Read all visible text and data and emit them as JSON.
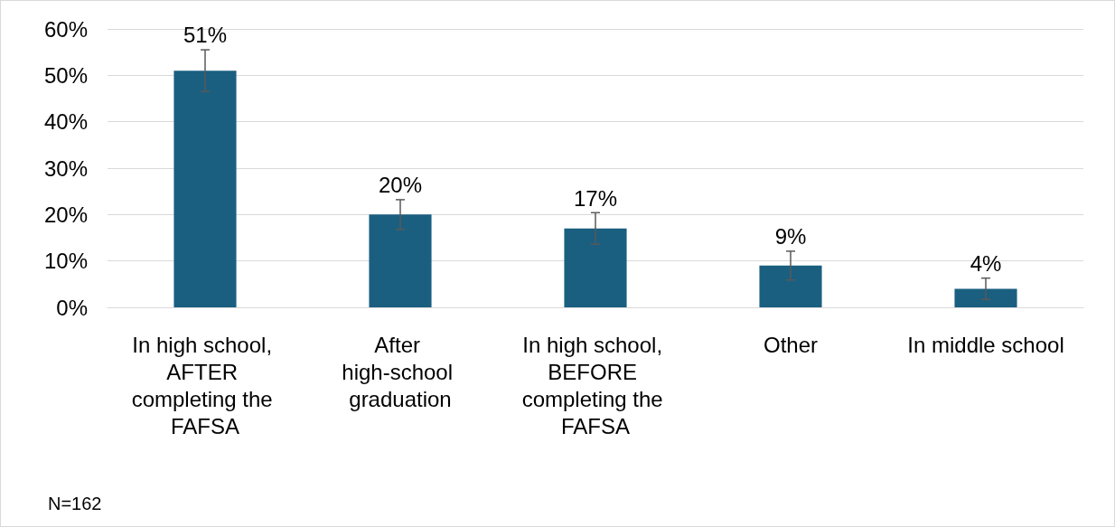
{
  "chart_data": {
    "type": "bar",
    "categories": [
      "In high school, AFTER completing the FAFSA",
      "After high-school graduation",
      "In high school, BEFORE completing the FAFSA",
      "Other",
      "In middle school"
    ],
    "values": [
      51,
      20,
      17,
      9,
      4
    ],
    "value_labels": [
      "51%",
      "20%",
      "17%",
      "9%",
      "4%"
    ],
    "errors": [
      4.5,
      3.2,
      3.4,
      3.1,
      2.3
    ],
    "color": "#1a5f80",
    "ylim": [
      0,
      60
    ],
    "yticks": [
      {
        "value": 0,
        "label": "0%"
      },
      {
        "value": 10,
        "label": "10%"
      },
      {
        "value": 20,
        "label": "20%"
      },
      {
        "value": 30,
        "label": "30%"
      },
      {
        "value": 40,
        "label": "40%"
      },
      {
        "value": 50,
        "label": "50%"
      },
      {
        "value": 60,
        "label": "60%"
      }
    ],
    "grid": "y",
    "annotations": [
      "N=162"
    ]
  }
}
